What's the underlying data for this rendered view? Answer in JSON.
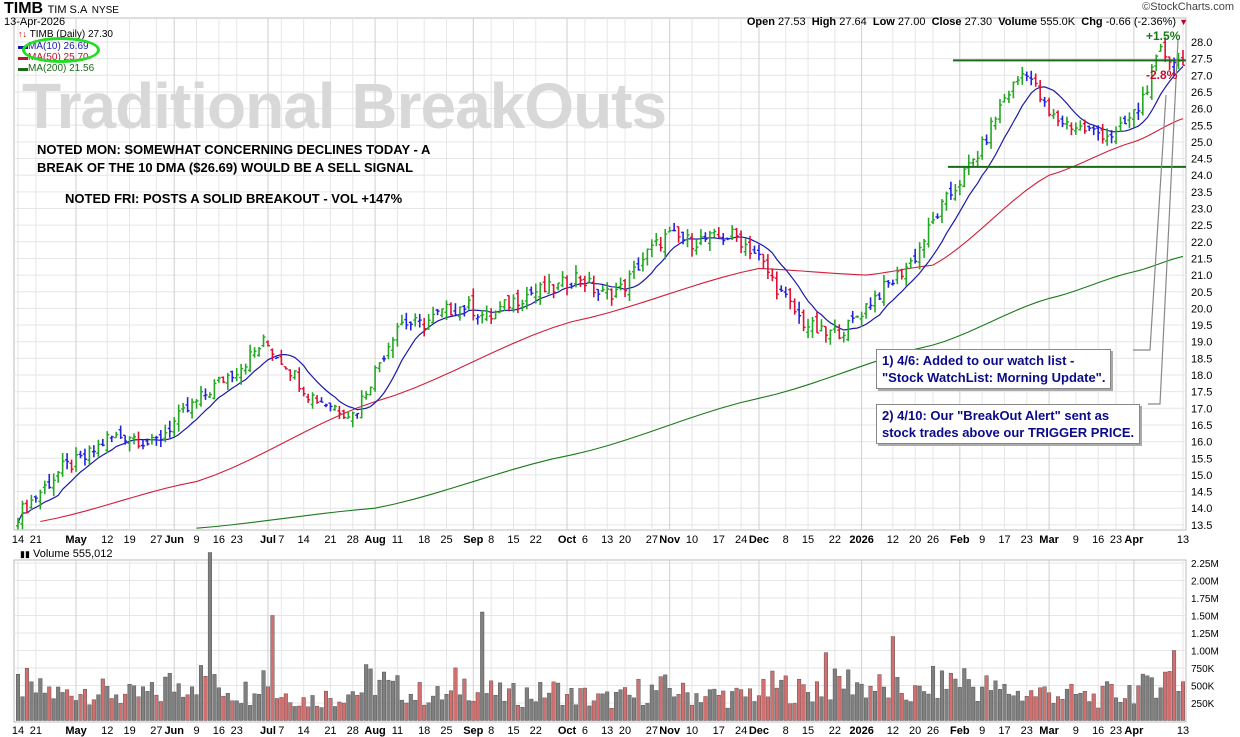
{
  "header": {
    "symbol": "TIMB",
    "company": "TIM S.A",
    "exchange": "NYSE",
    "date": "13-Apr-2026",
    "brand": "©StockCharts.com",
    "open_label": "Open",
    "open": "27.53",
    "high_label": "High",
    "high": "27.64",
    "low_label": "Low",
    "low": "27.00",
    "close_label": "Close",
    "close": "27.30",
    "volume_label": "Volume",
    "volume": "555.0K",
    "chg_label": "Chg",
    "chg": "-0.66 (-2.36%)"
  },
  "legend": {
    "price": "TIMB (Daily) 27.30",
    "ma10": "MA(10) 26.69",
    "ma50": "MA(50) 25.70",
    "ma200": "MA(200) 21.56",
    "volume": "Volume 555,012"
  },
  "annotations": {
    "watermark": "Traditional BreakOuts",
    "note1_line1": "NOTED MON: SOMEWHAT CONCERNING DECLINES TODAY - A",
    "note1_line2": "BREAK OF THE 10 DMA ($26.69) WOULD BE A SELL SIGNAL",
    "note2": "NOTED FRI: POSTS A SOLID BREAKOUT - VOL +147%",
    "callout1_line1": "1) 4/6: Added to our watch list -",
    "callout1_line2": "\"Stock WatchList: Morning Update\".",
    "callout2_line1": "2) 4/10: Our \"BreakOut Alert\" sent as",
    "callout2_line2": "stock trades above our TRIGGER PRICE.",
    "pct_up": "+1.5%",
    "pct_down": "-2.8%",
    "resistance_level": 27.45,
    "support_level": 24.25
  },
  "colors": {
    "up": "#22a822",
    "down": "#dd1133",
    "neutral": "#2222dd",
    "ma10": "#1a1aaa",
    "ma50": "#d0203a",
    "ma200": "#1a7a1a",
    "hline": "#1a6a1a",
    "vol_up": "#808080",
    "vol_down": "#d07070",
    "ellipse": "#22dd22"
  },
  "chart_data": {
    "type": "ohlc",
    "title": "TIMB TIM S.A NYSE (Daily)",
    "ylim": [
      13.25,
      28.5
    ],
    "y_ticks": [
      13.5,
      14.0,
      14.5,
      15.0,
      15.5,
      16.0,
      16.5,
      17.0,
      17.5,
      18.0,
      18.5,
      19.0,
      19.5,
      20.0,
      20.5,
      21.0,
      21.5,
      22.0,
      22.5,
      23.0,
      23.5,
      24.0,
      24.5,
      25.0,
      25.5,
      26.0,
      26.5,
      27.0,
      27.5,
      28.0
    ],
    "total_bars": 262,
    "weekly_closes": [
      13.8,
      14.5,
      15.2,
      15.5,
      16.1,
      16.2,
      15.9,
      16.6,
      17.2,
      17.8,
      18.3,
      19.0,
      18.3,
      17.4,
      17.1,
      16.8,
      18.2,
      19.6,
      19.5,
      19.9,
      20.1,
      19.7,
      20.2,
      20.5,
      20.6,
      21.0,
      20.4,
      20.6,
      21.6,
      22.2,
      22.0,
      22.1,
      22.2,
      21.6,
      20.5,
      19.6,
      19.2,
      19.4,
      20.2,
      20.8,
      21.5,
      22.8,
      23.8,
      24.8,
      26.3,
      27.2,
      25.8,
      25.5,
      25.3,
      25.2,
      26.0,
      27.7,
      27.3
    ],
    "ma50_points": [
      [
        5,
        13.6
      ],
      [
        40,
        14.8
      ],
      [
        80,
        17.2
      ],
      [
        124,
        19.6
      ],
      [
        166,
        21.2
      ],
      [
        190,
        21.0
      ],
      [
        205,
        21.3
      ],
      [
        231,
        24.0
      ],
      [
        250,
        25.0
      ],
      [
        261,
        25.7
      ]
    ],
    "ma200_points": [
      [
        40,
        13.4
      ],
      [
        80,
        14.0
      ],
      [
        124,
        15.6
      ],
      [
        166,
        17.3
      ],
      [
        205,
        18.9
      ],
      [
        231,
        20.3
      ],
      [
        250,
        21.1
      ],
      [
        261,
        21.56
      ]
    ],
    "volume_weekly_k": [
      500,
      420,
      380,
      450,
      400,
      350,
      380,
      520,
      600,
      480,
      420,
      650,
      380,
      300,
      340,
      420,
      560,
      450,
      380,
      350,
      520,
      400,
      360,
      380,
      420,
      350,
      300,
      330,
      420,
      450,
      380,
      360,
      340,
      400,
      480,
      420,
      500,
      560,
      480,
      420,
      380,
      520,
      600,
      480,
      420,
      380,
      400,
      360,
      330,
      380,
      450,
      620,
      555
    ],
    "volume_spikes_k": [
      [
        43,
        2400
      ],
      [
        57,
        1500
      ],
      [
        104,
        1550
      ],
      [
        181,
        970
      ],
      [
        196,
        1200
      ],
      [
        259,
        1000
      ]
    ],
    "volume_ticks": [
      "250K",
      "500K",
      "750K",
      "1.00M",
      "1.25M",
      "1.50M",
      "1.75M",
      "2.00M",
      "2.25M"
    ],
    "volume_tick_values": [
      250,
      500,
      750,
      1000,
      1250,
      1500,
      1750,
      2000,
      2250
    ],
    "x_labels": [
      {
        "t": "14",
        "b": 0
      },
      {
        "t": "21",
        "b": 4
      },
      {
        "t": "May",
        "b": 13,
        "bold": true
      },
      {
        "t": "12",
        "b": 20
      },
      {
        "t": "19",
        "b": 25
      },
      {
        "t": "27",
        "b": 31
      },
      {
        "t": "Jun",
        "b": 35,
        "bold": true
      },
      {
        "t": "9",
        "b": 40
      },
      {
        "t": "16",
        "b": 45
      },
      {
        "t": "23",
        "b": 49
      },
      {
        "t": "Jul",
        "b": 56,
        "bold": true
      },
      {
        "t": "7",
        "b": 59
      },
      {
        "t": "14",
        "b": 64
      },
      {
        "t": "21",
        "b": 70
      },
      {
        "t": "28",
        "b": 75
      },
      {
        "t": "Aug",
        "b": 80,
        "bold": true
      },
      {
        "t": "11",
        "b": 85
      },
      {
        "t": "18",
        "b": 91
      },
      {
        "t": "25",
        "b": 96
      },
      {
        "t": "Sep",
        "b": 102,
        "bold": true
      },
      {
        "t": "8",
        "b": 106
      },
      {
        "t": "15",
        "b": 111
      },
      {
        "t": "22",
        "b": 116
      },
      {
        "t": "Oct",
        "b": 123,
        "bold": true
      },
      {
        "t": "6",
        "b": 127
      },
      {
        "t": "13",
        "b": 132
      },
      {
        "t": "20",
        "b": 136
      },
      {
        "t": "27",
        "b": 142
      },
      {
        "t": "Nov",
        "b": 146,
        "bold": true
      },
      {
        "t": "10",
        "b": 151
      },
      {
        "t": "17",
        "b": 157
      },
      {
        "t": "24",
        "b": 162
      },
      {
        "t": "Dec",
        "b": 166,
        "bold": true
      },
      {
        "t": "8",
        "b": 172
      },
      {
        "t": "15",
        "b": 177
      },
      {
        "t": "22",
        "b": 183
      },
      {
        "t": "2026",
        "b": 189,
        "bold": true
      },
      {
        "t": "12",
        "b": 196
      },
      {
        "t": "20",
        "b": 201
      },
      {
        "t": "26",
        "b": 205
      },
      {
        "t": "Feb",
        "b": 211,
        "bold": true
      },
      {
        "t": "9",
        "b": 216
      },
      {
        "t": "17",
        "b": 221
      },
      {
        "t": "23",
        "b": 226
      },
      {
        "t": "Mar",
        "b": 231,
        "bold": true
      },
      {
        "t": "9",
        "b": 237
      },
      {
        "t": "16",
        "b": 242
      },
      {
        "t": "23",
        "b": 246
      },
      {
        "t": "Apr",
        "b": 250,
        "bold": true
      },
      {
        "t": "13",
        "b": 261
      }
    ]
  }
}
